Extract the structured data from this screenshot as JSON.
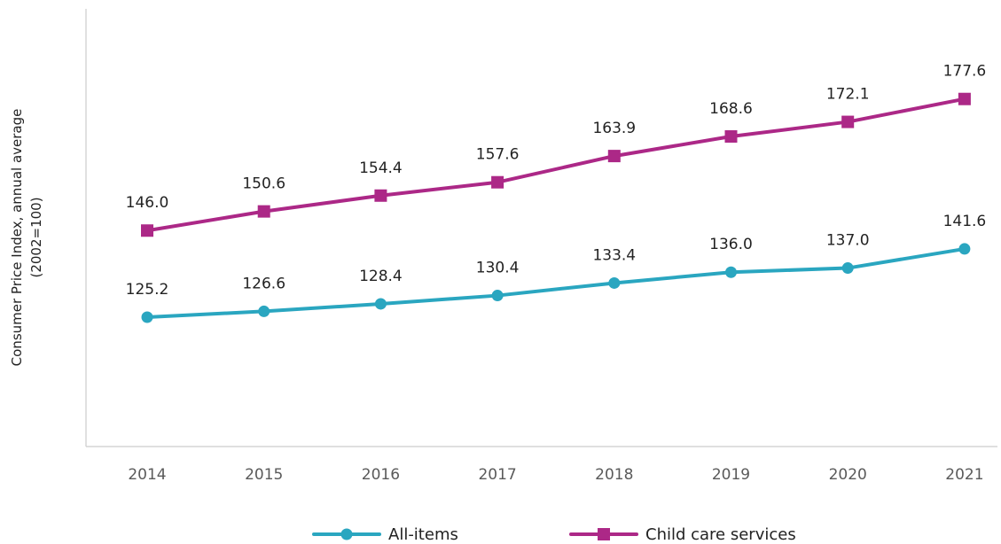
{
  "chart_data": {
    "type": "line",
    "xlabel": "",
    "ylabel": "Consumer Price Index, annual average\n(2002=100)",
    "ylim": [
      100,
      180
    ],
    "grid": false,
    "legend_position": "bottom",
    "categories": [
      "2014",
      "2015",
      "2016",
      "2017",
      "2018",
      "2019",
      "2020",
      "2021"
    ],
    "series": [
      {
        "name": "All-items",
        "color": "#2aa6c0",
        "marker": "circle",
        "values": [
          125.2,
          126.6,
          128.4,
          130.4,
          133.4,
          136.0,
          137.0,
          141.6
        ],
        "labels": [
          "125.2",
          "126.6",
          "128.4",
          "130.4",
          "133.4",
          "136.0",
          "137.0",
          "141.6"
        ]
      },
      {
        "name": "Child care services",
        "color": "#ac2887",
        "marker": "square",
        "values": [
          146.0,
          150.6,
          154.4,
          157.6,
          163.9,
          168.6,
          172.1,
          177.6
        ],
        "labels": [
          "146.0",
          "150.6",
          "154.4",
          "157.6",
          "163.9",
          "168.6",
          "172.1",
          "177.6"
        ]
      }
    ]
  }
}
